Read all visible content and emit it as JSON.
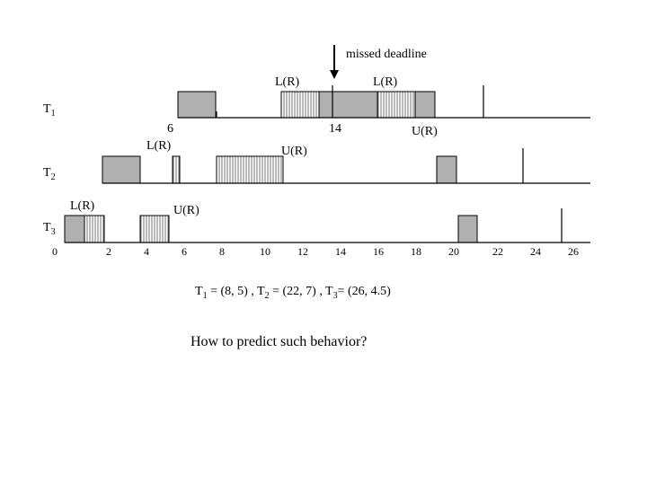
{
  "annotation_missed": "missed deadline",
  "lock_labels": {
    "t1_first": "L(R)",
    "t1_second": "L(R)",
    "t1_unlock": "U(R)",
    "t2_lock": "L(R)",
    "t2_unlock": "U(R)",
    "t3_lock": "L(R)",
    "t3_unlock": "U(R)"
  },
  "tasks": [
    {
      "name": "T",
      "index": "1"
    },
    {
      "name": "T",
      "index": "2"
    },
    {
      "name": "T",
      "index": "3"
    }
  ],
  "t1_marks": [
    6,
    14
  ],
  "axis_ticks": [
    0,
    2,
    4,
    6,
    8,
    10,
    12,
    14,
    16,
    18,
    20,
    22,
    24,
    26
  ],
  "formula": [
    "T",
    "1",
    " = (8, 5) , T",
    "2",
    " = (22, 7) , T",
    "3",
    "= (26, 4.5)"
  ],
  "question": "How to predict such behavior?"
}
